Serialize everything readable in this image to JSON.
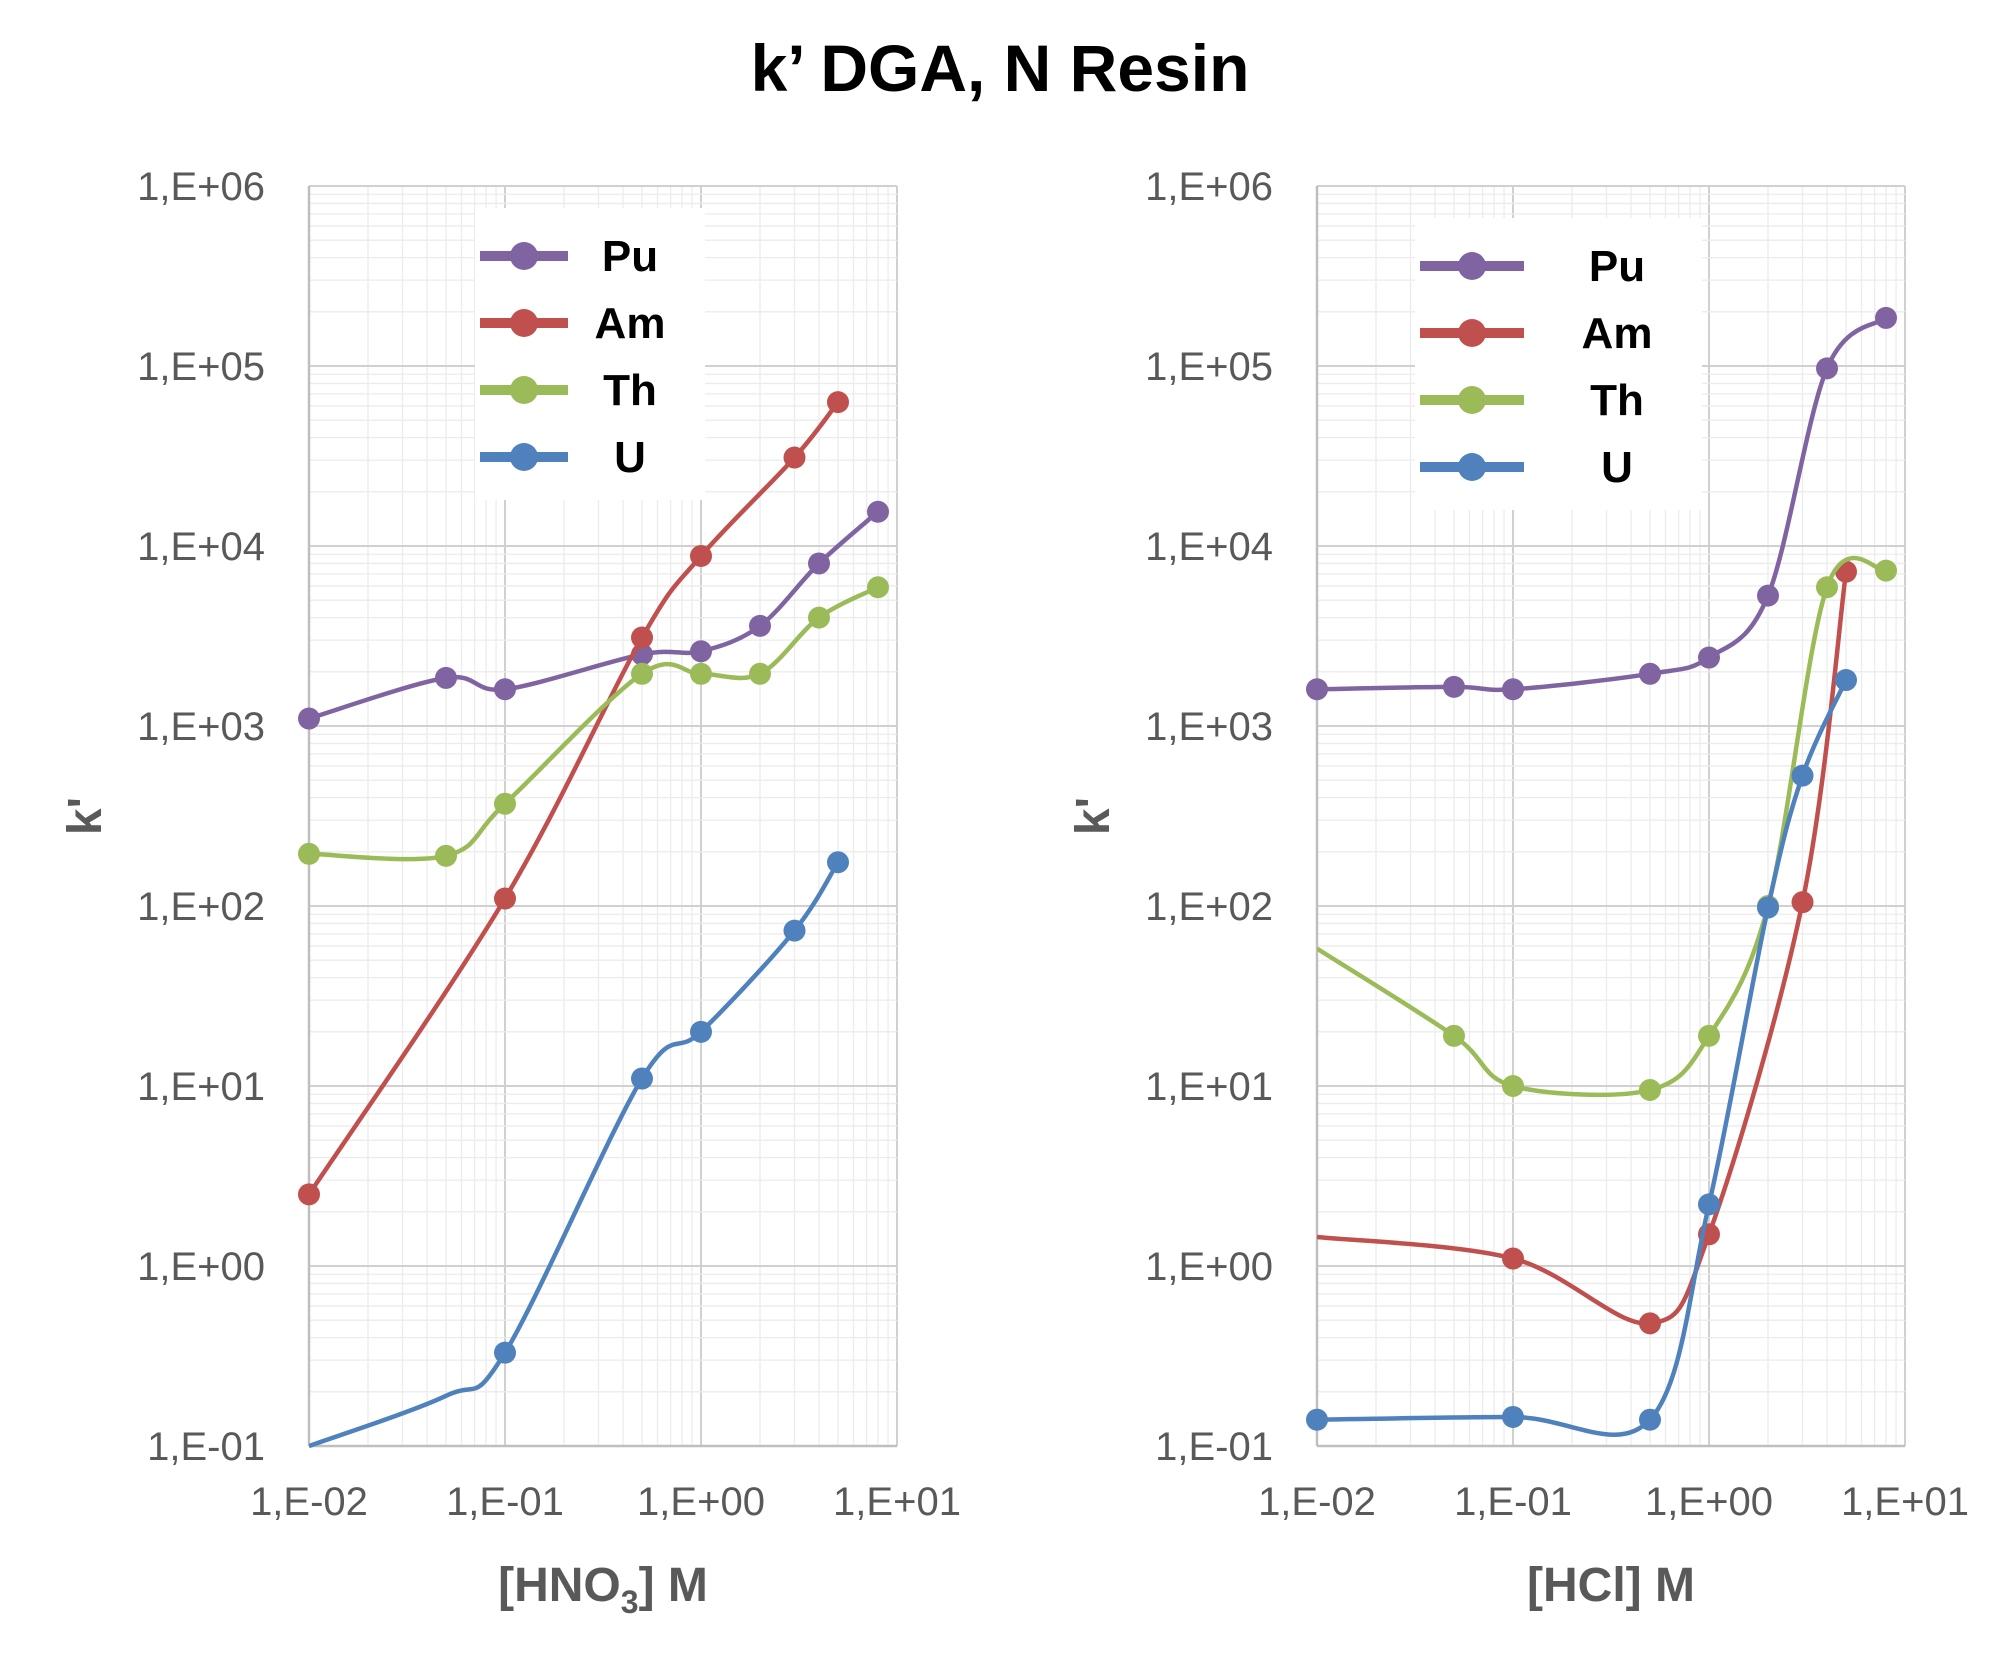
{
  "title": "k’ DGA, N Resin",
  "colors": {
    "Pu": "#8064a2",
    "Am": "#c0504d",
    "Th": "#9bbb59",
    "U": "#4f81bd"
  },
  "chart_data": [
    {
      "type": "line",
      "xscale": "log",
      "yscale": "log",
      "xlim": [
        0.01,
        10
      ],
      "ylim": [
        0.1,
        1000000
      ],
      "xlabel_main": "[HNO",
      "xlabel_sub": "3",
      "xlabel_end": "] M",
      "ylabel": "k'",
      "xticks": [
        "1,E-02",
        "1,E-01",
        "1,E+00",
        "1,E+01"
      ],
      "yticks": [
        "1,E-01",
        "1,E+00",
        "1,E+01",
        "1,E+02",
        "1,E+03",
        "1,E+04",
        "1,E+05",
        "1,E+06"
      ],
      "grid": true,
      "legend": "top-center",
      "series": [
        {
          "name": "Pu",
          "points": [
            [
              0.01,
              1100
            ],
            [
              0.05,
              1850
            ],
            [
              0.1,
              1600
            ],
            [
              0.5,
              2500
            ],
            [
              1,
              2600
            ],
            [
              2,
              3600
            ],
            [
              4,
              8000
            ],
            [
              8,
              15500
            ]
          ]
        },
        {
          "name": "Am",
          "points": [
            [
              0.01,
              2.5
            ],
            [
              0.1,
              110
            ],
            [
              0.5,
              3100
            ],
            [
              1,
              8800
            ],
            [
              3,
              31000
            ],
            [
              5,
              63000
            ]
          ]
        },
        {
          "name": "Th",
          "points": [
            [
              0.01,
              195
            ],
            [
              0.05,
              190
            ],
            [
              0.1,
              370
            ],
            [
              0.5,
              1950
            ],
            [
              1,
              1950
            ],
            [
              2,
              1950
            ],
            [
              4,
              4000
            ],
            [
              8,
              5900
            ]
          ]
        },
        {
          "name": "U",
          "points": [
            [
              0.1,
              0.33
            ],
            [
              0.5,
              11
            ],
            [
              1,
              20
            ],
            [
              3,
              73
            ],
            [
              5,
              175
            ]
          ],
          "lead": [
            [
              0.01,
              0.1
            ],
            [
              0.05,
              0.19
            ]
          ]
        }
      ]
    },
    {
      "type": "line",
      "xscale": "log",
      "yscale": "log",
      "xlim": [
        0.01,
        10
      ],
      "ylim": [
        0.1,
        1000000
      ],
      "xlabel_main": "[HCl] M",
      "xlabel_sub": "",
      "xlabel_end": "",
      "ylabel": "k'",
      "xticks": [
        "1,E-02",
        "1,E-01",
        "1,E+00",
        "1,E+01"
      ],
      "yticks": [
        "1,E-01",
        "1,E+00",
        "1,E+01",
        "1,E+02",
        "1,E+03",
        "1,E+04",
        "1,E+05",
        "1,E+06"
      ],
      "grid": true,
      "legend": "top-center",
      "series": [
        {
          "name": "Pu",
          "points": [
            [
              0.01,
              1600
            ],
            [
              0.05,
              1650
            ],
            [
              0.1,
              1600
            ],
            [
              0.5,
              1950
            ],
            [
              1,
              2400
            ],
            [
              2,
              5300
            ],
            [
              4,
              97000
            ],
            [
              8,
              185000
            ]
          ]
        },
        {
          "name": "Am",
          "points": [
            [
              0.1,
              1.1
            ],
            [
              0.5,
              0.48
            ],
            [
              1,
              1.5
            ],
            [
              3,
              105
            ],
            [
              5,
              7200
            ]
          ],
          "lead": [
            [
              0.01,
              1.45
            ]
          ]
        },
        {
          "name": "Th",
          "points": [
            [
              0.05,
              19
            ],
            [
              0.1,
              10
            ],
            [
              0.5,
              9.5
            ],
            [
              1,
              19
            ],
            [
              2,
              100
            ],
            [
              4,
              5900
            ],
            [
              8,
              7300
            ]
          ],
          "lead": [
            [
              0.01,
              58
            ]
          ]
        },
        {
          "name": "U",
          "points": [
            [
              0.01,
              0.14
            ],
            [
              0.1,
              0.145
            ],
            [
              0.5,
              0.14
            ],
            [
              1,
              2.2
            ],
            [
              2,
              98
            ],
            [
              3,
              530
            ],
            [
              5,
              1800
            ]
          ]
        }
      ]
    }
  ]
}
